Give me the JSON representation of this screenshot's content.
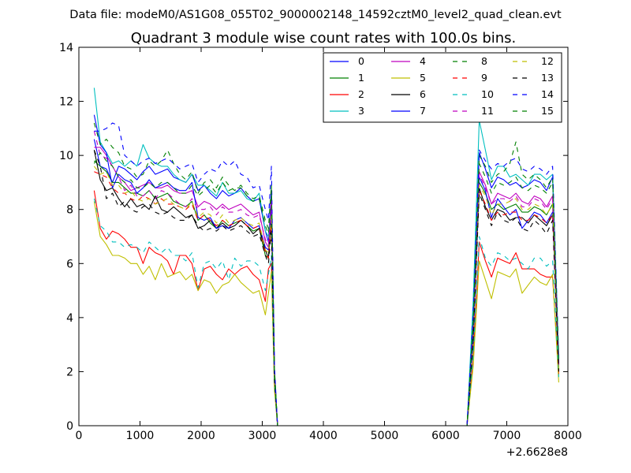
{
  "chart_data": {
    "type": "line",
    "suptitle": "Data file: modeM0/AS1G08_055T02_9000002148_14592cztM0_level2_quad_clean.evt",
    "title": "Quadrant 3 module wise count rates with 100.0s bins.",
    "xlabel": "",
    "ylabel": "",
    "xlim": [
      0,
      8000
    ],
    "ylim": [
      0,
      14
    ],
    "x_ticks": [
      "0",
      "1000",
      "2000",
      "3000",
      "4000",
      "5000",
      "6000",
      "7000",
      "8000"
    ],
    "y_ticks": [
      "0",
      "2",
      "4",
      "6",
      "8",
      "10",
      "12",
      "14"
    ],
    "x_offset_label": "+2.6628e8",
    "grid": false,
    "legend_position": "top-right",
    "x": [
      250,
      350,
      450,
      550,
      650,
      750,
      850,
      950,
      1050,
      1150,
      1250,
      1350,
      1450,
      1550,
      1650,
      1750,
      1850,
      1950,
      2050,
      2150,
      2250,
      2350,
      2450,
      2550,
      2650,
      2750,
      2850,
      2950,
      3050,
      3100,
      3150,
      3200,
      3250,
      3350,
      6350,
      6450,
      6550,
      6650,
      6750,
      6850,
      6950,
      7050,
      7150,
      7250,
      7350,
      7450,
      7550,
      7650,
      7750,
      7850
    ],
    "series": [
      {
        "name": "0",
        "color": "#0000ff",
        "dash": "solid",
        "values": [
          10.6,
          9.6,
          9.5,
          9.0,
          9.6,
          9.5,
          9.3,
          9.1,
          9.4,
          9.6,
          9.3,
          9.4,
          9.5,
          9.2,
          9.1,
          9.0,
          9.3,
          8.7,
          8.9,
          8.6,
          8.4,
          8.7,
          8.5,
          8.6,
          8.8,
          8.5,
          8.3,
          8.4,
          7.2,
          6.8,
          8.7,
          2.0,
          0,
          0,
          0,
          3.8,
          10.1,
          9.5,
          8.8,
          9.2,
          9.1,
          8.9,
          9.0,
          8.8,
          8.9,
          9.1,
          9.0,
          8.7,
          9.2,
          2.4
        ]
      },
      {
        "name": "1",
        "color": "#008000",
        "dash": "solid",
        "values": [
          9.8,
          9.6,
          9.4,
          9.0,
          9.0,
          8.8,
          8.6,
          8.6,
          8.5,
          8.7,
          8.4,
          8.5,
          8.6,
          8.3,
          8.2,
          8.1,
          8.3,
          7.6,
          7.8,
          7.5,
          7.3,
          7.6,
          7.4,
          7.5,
          7.6,
          7.4,
          7.2,
          7.3,
          6.3,
          6.2,
          7.9,
          1.7,
          0,
          0,
          0,
          3.1,
          9.0,
          8.6,
          8.0,
          8.2,
          8.0,
          8.1,
          8.2,
          7.9,
          7.9,
          8.1,
          8.0,
          7.8,
          8.2,
          2.0
        ]
      },
      {
        "name": "2",
        "color": "#ff0000",
        "dash": "solid",
        "values": [
          8.7,
          7.3,
          6.9,
          7.2,
          7.1,
          6.9,
          6.6,
          6.6,
          6.0,
          6.6,
          6.4,
          6.3,
          6.1,
          5.6,
          6.3,
          6.3,
          6.0,
          5.0,
          5.8,
          5.9,
          5.6,
          5.4,
          5.8,
          5.6,
          5.8,
          5.9,
          5.6,
          5.4,
          4.6,
          5.8,
          6.0,
          1.4,
          0,
          0,
          0,
          2.4,
          6.8,
          6.1,
          5.5,
          6.2,
          6.1,
          6.0,
          6.4,
          5.8,
          5.8,
          5.8,
          5.6,
          5.5,
          5.5,
          1.9
        ]
      },
      {
        "name": "3",
        "color": "#00bfbf",
        "dash": "solid",
        "values": [
          12.5,
          10.5,
          10.1,
          9.7,
          9.8,
          9.6,
          9.8,
          9.6,
          10.4,
          9.9,
          9.7,
          9.6,
          9.6,
          9.3,
          9.1,
          9.0,
          9.3,
          8.9,
          8.9,
          8.7,
          8.5,
          9.0,
          8.6,
          8.6,
          8.7,
          8.4,
          8.3,
          8.6,
          7.2,
          7.0,
          8.2,
          2.0,
          0,
          0,
          0,
          4.6,
          11.3,
          10.2,
          9.1,
          9.6,
          9.6,
          9.2,
          9.3,
          9.1,
          8.9,
          9.3,
          9.3,
          9.1,
          9.3,
          2.6
        ]
      },
      {
        "name": "4",
        "color": "#bf00bf",
        "dash": "solid",
        "values": [
          10.3,
          10.3,
          10.0,
          9.6,
          9.2,
          9.0,
          8.7,
          8.8,
          8.9,
          9.0,
          8.8,
          8.8,
          8.9,
          8.7,
          8.6,
          8.6,
          8.7,
          8.1,
          8.3,
          8.2,
          8.0,
          8.2,
          8.0,
          8.1,
          8.2,
          8.0,
          7.8,
          7.9,
          6.8,
          6.6,
          8.3,
          1.9,
          0,
          0,
          0,
          3.5,
          9.4,
          8.9,
          8.2,
          8.6,
          8.5,
          8.4,
          8.6,
          8.3,
          8.2,
          8.5,
          8.4,
          8.1,
          8.5,
          2.2
        ]
      },
      {
        "name": "5",
        "color": "#bfbf00",
        "dash": "solid",
        "values": [
          8.3,
          7.0,
          6.7,
          6.3,
          6.3,
          6.2,
          6.0,
          6.0,
          5.6,
          5.9,
          5.4,
          6.0,
          5.5,
          5.6,
          5.7,
          5.4,
          5.6,
          5.0,
          5.4,
          5.3,
          4.9,
          5.2,
          5.3,
          5.6,
          5.3,
          5.1,
          4.9,
          5.0,
          4.1,
          4.9,
          5.7,
          1.3,
          0,
          0,
          0,
          2.2,
          6.1,
          5.4,
          4.7,
          5.7,
          5.6,
          5.5,
          5.8,
          4.9,
          5.2,
          5.5,
          5.3,
          5.2,
          5.6,
          1.6
        ]
      },
      {
        "name": "6",
        "color": "#000000",
        "dash": "solid",
        "values": [
          10.2,
          9.1,
          8.7,
          8.8,
          8.4,
          8.1,
          8.4,
          8.1,
          8.2,
          8.0,
          8.5,
          8.0,
          7.9,
          8.1,
          7.9,
          7.7,
          7.8,
          7.3,
          7.4,
          7.6,
          7.3,
          7.5,
          7.3,
          7.4,
          7.6,
          7.4,
          7.1,
          7.3,
          6.5,
          6.2,
          7.5,
          1.8,
          0,
          0,
          0,
          3.2,
          8.8,
          8.1,
          7.6,
          8.0,
          7.9,
          7.6,
          7.7,
          7.7,
          7.5,
          7.8,
          7.6,
          7.4,
          7.8,
          2.1
        ]
      },
      {
        "name": "7",
        "color": "#0000ff",
        "dash": "solid",
        "values": [
          11.5,
          10.4,
          10.1,
          8.8,
          9.3,
          9.1,
          9.0,
          8.6,
          8.8,
          9.1,
          8.8,
          8.9,
          9.0,
          8.8,
          8.7,
          8.7,
          9.0,
          7.7,
          7.6,
          7.7,
          7.3,
          7.4,
          7.3,
          7.6,
          7.7,
          7.5,
          7.3,
          7.4,
          6.6,
          6.5,
          8.0,
          1.9,
          0,
          0,
          0,
          3.3,
          9.2,
          8.7,
          7.7,
          8.4,
          8.1,
          7.8,
          8.0,
          7.3,
          7.6,
          7.9,
          7.8,
          7.5,
          7.9,
          2.2
        ]
      },
      {
        "name": "8",
        "color": "#008000",
        "dash": "dashed",
        "values": [
          11.2,
          10.4,
          10.6,
          10.3,
          10.1,
          9.6,
          9.5,
          9.2,
          9.3,
          9.8,
          9.6,
          9.8,
          10.2,
          9.7,
          9.3,
          9.1,
          9.4,
          8.6,
          9.0,
          9.1,
          8.8,
          9.2,
          8.9,
          8.7,
          8.9,
          8.6,
          8.4,
          8.5,
          7.6,
          7.3,
          8.9,
          2.1,
          0,
          0,
          0,
          3.9,
          10.0,
          9.6,
          9.0,
          9.3,
          9.4,
          9.7,
          10.5,
          9.3,
          9.1,
          9.3,
          9.1,
          8.8,
          9.2,
          2.3
        ]
      },
      {
        "name": "9",
        "color": "#ff0000",
        "dash": "dashed",
        "values": [
          9.4,
          9.3,
          9.2,
          8.8,
          8.6,
          8.6,
          8.4,
          8.3,
          8.5,
          8.4,
          8.2,
          8.4,
          8.2,
          8.2,
          8.1,
          8.0,
          8.2,
          7.6,
          7.8,
          7.6,
          7.4,
          7.6,
          7.4,
          7.5,
          7.6,
          7.4,
          7.3,
          7.4,
          6.4,
          6.2,
          7.6,
          1.8,
          0,
          0,
          0,
          3.0,
          8.7,
          8.2,
          7.6,
          7.9,
          7.8,
          7.9,
          7.9,
          7.6,
          7.6,
          7.8,
          7.7,
          7.5,
          7.8,
          2.0
        ]
      },
      {
        "name": "10",
        "color": "#00bfbf",
        "dash": "dashed",
        "values": [
          8.4,
          7.4,
          7.2,
          6.8,
          6.8,
          6.6,
          6.7,
          6.6,
          6.4,
          6.8,
          6.6,
          6.4,
          6.6,
          6.3,
          6.3,
          6.1,
          6.4,
          5.1,
          6.0,
          6.1,
          5.8,
          6.1,
          5.4,
          6.2,
          5.9,
          6.1,
          6.1,
          5.9,
          5.0,
          5.6,
          6.3,
          1.5,
          0,
          0,
          0,
          2.6,
          7.0,
          6.2,
          5.9,
          6.4,
          6.3,
          6.1,
          6.2,
          6.0,
          5.8,
          6.2,
          6.2,
          5.9,
          6.1,
          1.8
        ]
      },
      {
        "name": "11",
        "color": "#bf00bf",
        "dash": "dashed",
        "values": [
          10.9,
          10.0,
          9.9,
          9.6,
          9.2,
          8.7,
          8.9,
          8.5,
          8.5,
          8.7,
          8.4,
          8.7,
          8.6,
          8.4,
          8.2,
          8.1,
          8.4,
          8.0,
          8.0,
          8.1,
          7.8,
          8.1,
          7.9,
          7.9,
          8.0,
          7.8,
          7.7,
          7.8,
          6.9,
          6.7,
          8.4,
          1.9,
          0,
          0,
          0,
          3.5,
          9.3,
          8.8,
          8.2,
          8.4,
          8.4,
          8.3,
          8.5,
          8.1,
          8.1,
          8.4,
          8.3,
          8.0,
          8.4,
          2.2
        ]
      },
      {
        "name": "12",
        "color": "#bfbf00",
        "dash": "dashed",
        "values": [
          9.6,
          9.3,
          9.4,
          8.9,
          8.9,
          8.6,
          8.7,
          8.4,
          8.3,
          8.4,
          8.2,
          8.3,
          8.4,
          8.2,
          8.1,
          8.0,
          8.3,
          7.7,
          7.9,
          7.8,
          7.5,
          7.8,
          7.5,
          7.6,
          7.7,
          7.5,
          7.4,
          7.5,
          6.5,
          6.4,
          7.8,
          1.8,
          0,
          0,
          0,
          3.2,
          8.9,
          8.5,
          7.8,
          8.2,
          8.2,
          8.3,
          8.4,
          8.0,
          8.0,
          8.2,
          8.1,
          7.8,
          8.2,
          2.1
        ]
      },
      {
        "name": "13",
        "color": "#000000",
        "dash": "dashed",
        "values": [
          10.2,
          9.6,
          8.4,
          8.6,
          8.1,
          8.3,
          8.0,
          7.9,
          8.1,
          8.2,
          7.9,
          7.8,
          7.9,
          7.7,
          7.6,
          7.6,
          7.8,
          7.4,
          7.2,
          7.3,
          7.2,
          7.4,
          7.2,
          7.3,
          7.4,
          7.2,
          7.0,
          7.1,
          6.3,
          6.0,
          7.2,
          1.7,
          0,
          0,
          0,
          3.1,
          8.6,
          8.0,
          7.4,
          7.9,
          7.6,
          7.5,
          7.7,
          7.3,
          7.2,
          7.6,
          7.4,
          7.1,
          7.6,
          2.0
        ]
      },
      {
        "name": "14",
        "color": "#0000ff",
        "dash": "dashed",
        "values": [
          10.9,
          10.9,
          11.0,
          11.2,
          11.1,
          10.0,
          9.8,
          9.6,
          9.8,
          9.9,
          9.7,
          9.8,
          9.9,
          9.7,
          9.5,
          9.6,
          9.7,
          9.0,
          9.3,
          9.5,
          9.4,
          9.8,
          9.6,
          9.8,
          9.3,
          9.2,
          8.8,
          8.9,
          8.0,
          7.6,
          9.6,
          2.2,
          0,
          0,
          0,
          4.1,
          10.2,
          9.8,
          9.5,
          9.7,
          9.6,
          9.8,
          9.9,
          9.5,
          9.4,
          9.6,
          9.5,
          9.3,
          9.6,
          2.5
        ]
      },
      {
        "name": "15",
        "color": "#008000",
        "dash": "dashed",
        "values": [
          9.7,
          10.1,
          9.8,
          9.6,
          9.2,
          9.0,
          9.1,
          8.8,
          8.8,
          9.0,
          8.8,
          9.0,
          9.0,
          8.8,
          8.6,
          8.6,
          8.9,
          8.5,
          8.7,
          8.9,
          8.6,
          9.0,
          8.7,
          8.8,
          8.8,
          8.5,
          8.3,
          8.4,
          7.4,
          7.1,
          8.7,
          2.0,
          0,
          0,
          0,
          3.7,
          9.7,
          9.2,
          8.6,
          9.0,
          8.9,
          9.0,
          9.2,
          8.8,
          8.7,
          8.9,
          8.8,
          8.6,
          9.0,
          2.3
        ]
      }
    ]
  }
}
